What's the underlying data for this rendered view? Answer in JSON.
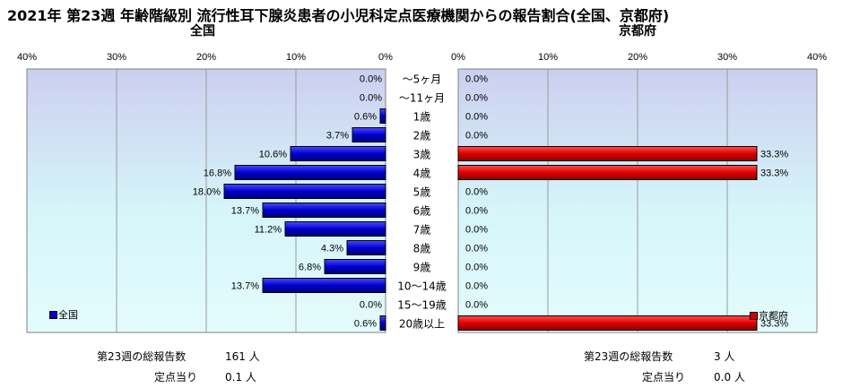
{
  "title": "2021年 第23週 年齢階級別 流行性耳下腺炎患者の小児科定点医療機関からの報告割合(全国、京都府)",
  "left_label": "全国",
  "right_label": "京都府",
  "colors": {
    "national": "#0000cc",
    "kyoto": "#dd0000"
  },
  "chart_data": [
    {
      "type": "bar",
      "orientation": "horizontal",
      "direction": "leftward",
      "title": "全国",
      "categories": [
        "～5ヶ月",
        "～11ヶ月",
        "1歳",
        "2歳",
        "3歳",
        "4歳",
        "5歳",
        "6歳",
        "7歳",
        "8歳",
        "9歳",
        "10～14歳",
        "15～19歳",
        "20歳以上"
      ],
      "series": [
        {
          "name": "全国",
          "values": [
            0.0,
            0.0,
            0.6,
            3.7,
            10.6,
            16.8,
            18.0,
            13.7,
            11.2,
            4.3,
            6.8,
            13.7,
            0.0,
            0.6
          ]
        }
      ],
      "data_labels": [
        "0.0%",
        "0.0%",
        "0.6%",
        "3.7%",
        "10.6%",
        "16.8%",
        "18.0%",
        "13.7%",
        "11.2%",
        "4.3%",
        "6.8%",
        "13.7%",
        "0.0%",
        "0.6%"
      ],
      "xlim": [
        0,
        40
      ],
      "ticks": [
        "40%",
        "30%",
        "20%",
        "10%",
        "0%"
      ],
      "legend": "bottom-left"
    },
    {
      "type": "bar",
      "orientation": "horizontal",
      "direction": "rightward",
      "title": "京都府",
      "categories": [
        "～5ヶ月",
        "～11ヶ月",
        "1歳",
        "2歳",
        "3歳",
        "4歳",
        "5歳",
        "6歳",
        "7歳",
        "8歳",
        "9歳",
        "10～14歳",
        "15～19歳",
        "20歳以上"
      ],
      "series": [
        {
          "name": "京都府",
          "values": [
            0.0,
            0.0,
            0.0,
            0.0,
            33.3,
            33.3,
            0.0,
            0.0,
            0.0,
            0.0,
            0.0,
            0.0,
            0.0,
            33.3
          ]
        }
      ],
      "data_labels": [
        "0.0%",
        "0.0%",
        "0.0%",
        "0.0%",
        "33.3%",
        "33.3%",
        "0.0%",
        "0.0%",
        "0.0%",
        "0.0%",
        "0.0%",
        "0.0%",
        "0.0%",
        "33.3%"
      ],
      "xlim": [
        0,
        40
      ],
      "ticks": [
        "0%",
        "10%",
        "20%",
        "30%",
        "40%"
      ],
      "legend": "bottom-right"
    }
  ],
  "footer": {
    "national_total_label": "第23週の総報告数",
    "national_total_value": "161 人",
    "national_per_label": "定点当り",
    "national_per_value": "0.1 人",
    "kyoto_total_label": "第23週の総報告数",
    "kyoto_total_value": "3 人",
    "kyoto_per_label": "定点当り",
    "kyoto_per_value": "0.0 人"
  }
}
